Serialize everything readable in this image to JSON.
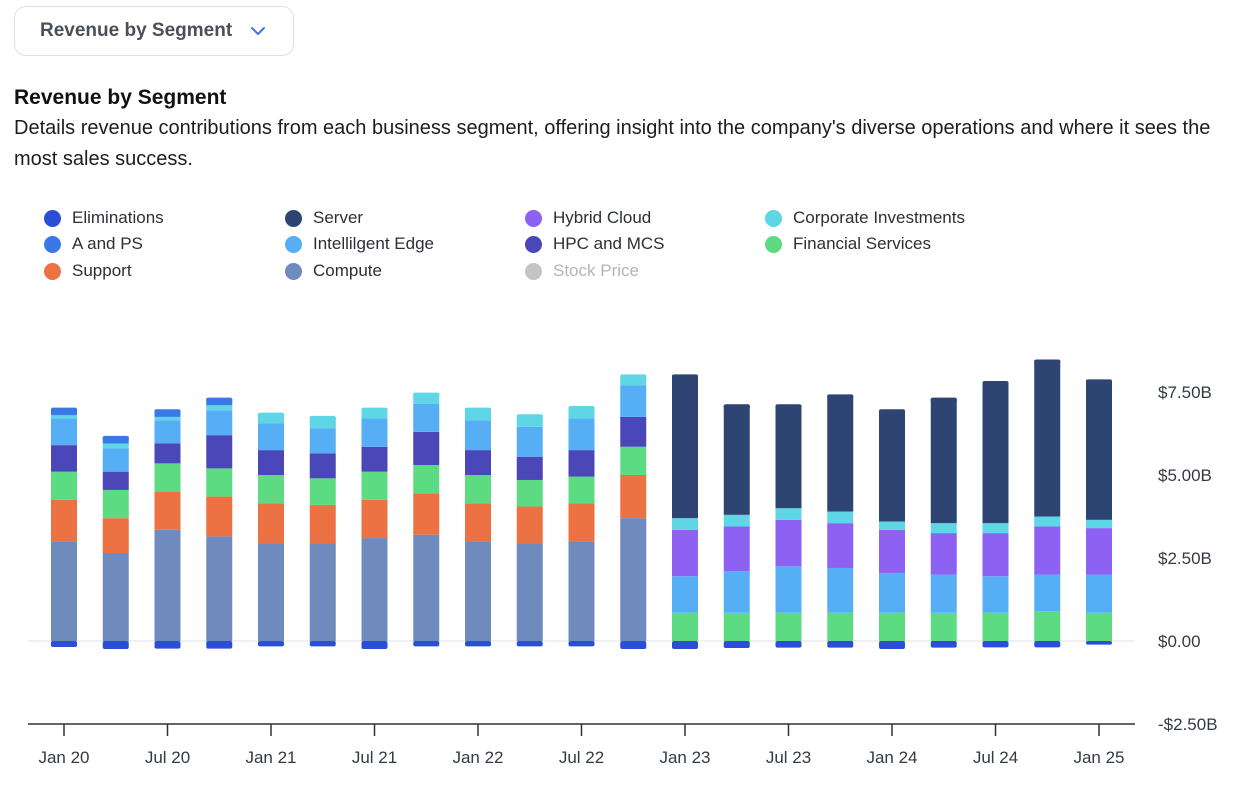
{
  "selector": {
    "label": "Revenue by Segment"
  },
  "section": {
    "title": "Revenue by Segment",
    "description": "Details revenue contributions from each business segment, offering insight into the company's diverse operations and where it sees the most sales success."
  },
  "chart_data": {
    "type": "bar",
    "stacked": true,
    "title": "Revenue by Segment",
    "ylim": [
      -2.5,
      9
    ],
    "y_ticks": [
      -2.5,
      0,
      2.5,
      5,
      7.5
    ],
    "y_tick_labels": [
      "-$2.50B",
      "$0.00",
      "$2.50B",
      "$5.00B",
      "$7.50B"
    ],
    "x_tick_labels": [
      "Jan 20",
      "Jul 20",
      "Jan 21",
      "Jul 21",
      "Jan 22",
      "Jul 22",
      "Jan 23",
      "Jul 23",
      "Jan 24",
      "Jul 24",
      "Jan 25"
    ],
    "x_tick_positions": [
      0,
      2,
      4,
      6,
      8,
      10,
      12,
      14,
      16,
      18,
      20
    ],
    "categories": [
      "Jan 20",
      "Apr 20",
      "Jul 20",
      "Oct 20",
      "Jan 21",
      "Apr 21",
      "Jul 21",
      "Oct 21",
      "Jan 22",
      "Apr 22",
      "Jul 22",
      "Oct 22",
      "Jan 23",
      "Apr 23",
      "Jul 23",
      "Oct 23",
      "Jan 24",
      "Apr 24",
      "Jul 24",
      "Oct 24",
      "Jan 25"
    ],
    "legend": [
      {
        "name": "Eliminations",
        "color": "#2a4fd6"
      },
      {
        "name": "A and PS",
        "color": "#3a78e8"
      },
      {
        "name": "Support",
        "color": "#ec7244"
      },
      {
        "name": "Server",
        "color": "#2e4573"
      },
      {
        "name": "Intellilgent Edge",
        "color": "#56aef5"
      },
      {
        "name": "Compute",
        "color": "#6f8bbd"
      },
      {
        "name": "Hybrid Cloud",
        "color": "#8d61f2"
      },
      {
        "name": "HPC and MCS",
        "color": "#4b47b8"
      },
      {
        "name": "Stock Price",
        "color": "#c4c4c4",
        "muted": true
      },
      {
        "name": "Corporate Investments",
        "color": "#5fd6e6"
      },
      {
        "name": "Financial Services",
        "color": "#5ddb83"
      }
    ],
    "stack_order": [
      "Compute",
      "Support",
      "Financial Services",
      "HPC and MCS",
      "Intellilgent Edge",
      "Hybrid Cloud",
      "Corporate Investments",
      "A and PS",
      "Server"
    ],
    "series": [
      {
        "name": "Eliminations",
        "color": "#2a4fd6",
        "negative": true,
        "values": [
          -0.12,
          -0.18,
          -0.17,
          -0.17,
          -0.1,
          -0.1,
          -0.18,
          -0.1,
          -0.1,
          -0.1,
          -0.1,
          -0.18,
          -0.18,
          -0.15,
          -0.14,
          -0.14,
          -0.18,
          -0.14,
          -0.13,
          -0.13,
          -0.05
        ]
      },
      {
        "name": "Compute",
        "color": "#6f8bbd",
        "values": [
          3.0,
          2.65,
          3.35,
          3.15,
          2.95,
          2.95,
          3.1,
          3.2,
          3.0,
          2.95,
          3.0,
          3.7,
          0,
          0,
          0,
          0,
          0,
          0,
          0,
          0,
          0
        ]
      },
      {
        "name": "Support",
        "color": "#ec7244",
        "values": [
          1.25,
          1.05,
          1.15,
          1.2,
          1.2,
          1.15,
          1.15,
          1.25,
          1.15,
          1.1,
          1.15,
          1.3,
          0,
          0,
          0,
          0,
          0,
          0,
          0,
          0,
          0
        ]
      },
      {
        "name": "Financial Services",
        "color": "#5ddb83",
        "values": [
          0.85,
          0.85,
          0.85,
          0.85,
          0.85,
          0.8,
          0.85,
          0.85,
          0.85,
          0.8,
          0.8,
          0.85,
          0.85,
          0.85,
          0.85,
          0.85,
          0.85,
          0.85,
          0.85,
          0.9,
          0.85
        ]
      },
      {
        "name": "HPC and MCS",
        "color": "#4b47b8",
        "values": [
          0.8,
          0.55,
          0.6,
          1.0,
          0.75,
          0.75,
          0.75,
          1.0,
          0.75,
          0.7,
          0.8,
          0.9,
          0,
          0,
          0,
          0,
          0,
          0,
          0,
          0,
          0
        ]
      },
      {
        "name": "Intellilgent Edge",
        "color": "#56aef5",
        "values": [
          0.8,
          0.7,
          0.7,
          0.75,
          0.8,
          0.75,
          0.85,
          0.85,
          0.9,
          0.9,
          0.95,
          0.95,
          1.1,
          1.25,
          1.4,
          1.35,
          1.2,
          1.15,
          1.1,
          1.1,
          1.15
        ]
      },
      {
        "name": "Hybrid Cloud",
        "color": "#8d61f2",
        "values": [
          0,
          0,
          0,
          0,
          0,
          0,
          0,
          0,
          0,
          0,
          0,
          0,
          1.4,
          1.35,
          1.4,
          1.35,
          1.3,
          1.25,
          1.3,
          1.45,
          1.4
        ]
      },
      {
        "name": "Corporate Investments",
        "color": "#5fd6e6",
        "values": [
          0.1,
          0.15,
          0.1,
          0.15,
          0.3,
          0.35,
          0.3,
          0.3,
          0.35,
          0.35,
          0.35,
          0.3,
          0.35,
          0.35,
          0.35,
          0.35,
          0.25,
          0.3,
          0.3,
          0.3,
          0.25
        ]
      },
      {
        "name": "A and PS",
        "color": "#3a78e8",
        "values": [
          0.2,
          0.2,
          0.2,
          0.2,
          0,
          0,
          0,
          0,
          0,
          0,
          0,
          0,
          0,
          0,
          0,
          0,
          0,
          0,
          0,
          0,
          0
        ]
      },
      {
        "name": "Server",
        "color": "#2e4573",
        "values": [
          0,
          0,
          0,
          0,
          0,
          0,
          0,
          0,
          0,
          0,
          0,
          0,
          4.3,
          3.3,
          3.1,
          3.5,
          3.35,
          3.75,
          4.25,
          4.7,
          4.2
        ]
      }
    ]
  }
}
